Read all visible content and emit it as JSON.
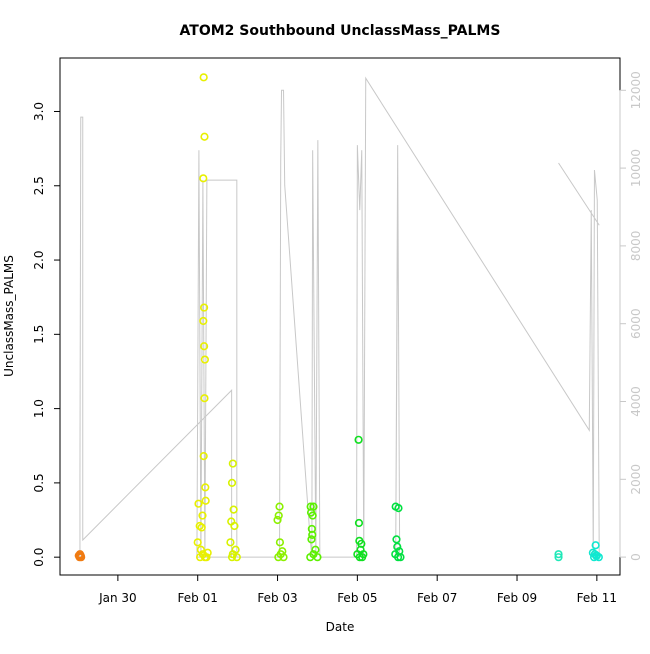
{
  "chart_data": {
    "type": "scatter",
    "title": "ATOM2 Southbound UnclassMass_PALMS",
    "x_label": "Date",
    "y_label": "UnclassMass_PALMS",
    "xlim": [
      28.55,
      42.58
    ],
    "xticks": [
      {
        "value": 30,
        "label": "Jan 30"
      },
      {
        "value": 32,
        "label": "Feb 01"
      },
      {
        "value": 34,
        "label": "Feb 03"
      },
      {
        "value": 36,
        "label": "Feb 05"
      },
      {
        "value": 38,
        "label": "Feb 07"
      },
      {
        "value": 40,
        "label": "Feb 09"
      },
      {
        "value": 42,
        "label": "Feb 11"
      }
    ],
    "ylim": [
      -0.12,
      3.36
    ],
    "yticks": [
      {
        "value": 0,
        "label": "0.0"
      },
      0.5,
      {
        "value": 1,
        "label": "1.0"
      },
      1.5,
      {
        "value": 2,
        "label": "2.0"
      },
      2.5,
      {
        "value": 3,
        "label": "3.0"
      }
    ],
    "y2lim": [
      -460,
      12830
    ],
    "y2ticks": [
      0,
      2000,
      4000,
      6000,
      8000,
      10000,
      12000
    ],
    "y2_color": "#c8c8c8",
    "series": [
      {
        "style": "line",
        "axis": "y2",
        "color": "#c8c8c8",
        "x": [
          29.05,
          29.05,
          29.07,
          29.12,
          29.12,
          32.85,
          32.85,
          31.98,
          32.03,
          32.08,
          32.13,
          32.18,
          32.23,
          32.98,
          32.98,
          34.05,
          34.08,
          34.1,
          34.15,
          34.18,
          34.81,
          34.86,
          34.88,
          34.96,
          35.01,
          35.06,
          35.98,
          36.0,
          36.06,
          36.11,
          36.16,
          36.21,
          41.81,
          41.86,
          41.91,
          41.94,
          42.01,
          42.06,
          36.06,
          37.01,
          36.96,
          37.01,
          37.06,
          41.04,
          41.04,
          42.06
        ],
        "values": [
          0,
          2110,
          11310,
          11310,
          440,
          4290,
          0,
          0,
          10460,
          0,
          9690,
          0,
          9690,
          9690,
          0,
          0,
          10200,
          12000,
          12000,
          9560,
          570,
          0,
          10460,
          0,
          10720,
          0,
          0,
          10590,
          8920,
          10460,
          0,
          12310,
          3260,
          8920,
          0,
          9950,
          9180,
          0,
          null,
          8790,
          0,
          10590,
          0,
          null,
          10130,
          8530
        ]
      },
      {
        "style": "points",
        "color": "#f07b12",
        "x": [
          29.02,
          29.05,
          29.08,
          29.04,
          29.07
        ],
        "values": [
          0.01,
          0.02,
          0.0,
          0.0,
          0.01
        ]
      },
      {
        "style": "points",
        "color": "#e8f000",
        "x": [
          32.15,
          32.17,
          32.14,
          32.16,
          32.14,
          32.16,
          32.18,
          32.17,
          32.15,
          32.19,
          32.2,
          32.02,
          32.12,
          32.05,
          32.1,
          32.0,
          32.08,
          32.13,
          32.18,
          32.22,
          32.06,
          32.25
        ],
        "values": [
          3.23,
          2.83,
          2.55,
          1.68,
          1.59,
          1.42,
          1.33,
          1.07,
          0.68,
          0.47,
          0.38,
          0.36,
          0.28,
          0.21,
          0.2,
          0.1,
          0.05,
          0.02,
          0.0,
          0.0,
          0.0,
          0.03
        ]
      },
      {
        "style": "points",
        "color": "#d8f200",
        "x": [
          32.88,
          32.86,
          32.9,
          32.84,
          32.92,
          32.82,
          32.95,
          32.88,
          32.98,
          32.86
        ],
        "values": [
          0.63,
          0.5,
          0.32,
          0.24,
          0.21,
          0.1,
          0.05,
          0.02,
          0.0,
          0.0
        ]
      },
      {
        "style": "points",
        "color": "#8cf000",
        "x": [
          34.05,
          34.03,
          34.0,
          34.06,
          34.12,
          34.08,
          34.02,
          34.15
        ],
        "values": [
          0.34,
          0.28,
          0.25,
          0.1,
          0.04,
          0.02,
          0.0,
          0.0
        ]
      },
      {
        "style": "points",
        "color": "#5cf000",
        "x": [
          34.83,
          34.9,
          34.84,
          34.88,
          34.86,
          34.87,
          34.85,
          34.95,
          34.9,
          35.0,
          34.82
        ],
        "values": [
          0.34,
          0.34,
          0.3,
          0.28,
          0.19,
          0.15,
          0.12,
          0.05,
          0.02,
          0.0,
          0.0
        ]
      },
      {
        "style": "points",
        "color": "#10e020",
        "x": [
          36.03,
          36.04,
          36.05,
          36.1,
          36.08,
          36.0,
          36.12,
          36.06,
          36.15
        ],
        "values": [
          0.79,
          0.23,
          0.11,
          0.09,
          0.05,
          0.02,
          0.0,
          0.0,
          0.02
        ]
      },
      {
        "style": "points",
        "color": "#00e040",
        "x": [
          36.96,
          37.03,
          36.98,
          37.0,
          37.05,
          36.95,
          37.02,
          37.08
        ],
        "values": [
          0.34,
          0.33,
          0.12,
          0.07,
          0.04,
          0.02,
          0.0,
          0.0
        ]
      },
      {
        "style": "points",
        "color": "#20e8b8",
        "x": [
          41.04,
          41.04
        ],
        "values": [
          0.02,
          0.0
        ]
      },
      {
        "style": "points",
        "color": "#10e8d0",
        "x": [
          41.97,
          41.9,
          41.95,
          42.0,
          41.93,
          42.05,
          41.98
        ],
        "values": [
          0.08,
          0.03,
          0.02,
          0.01,
          0.0,
          0.0,
          0.01
        ]
      }
    ]
  }
}
